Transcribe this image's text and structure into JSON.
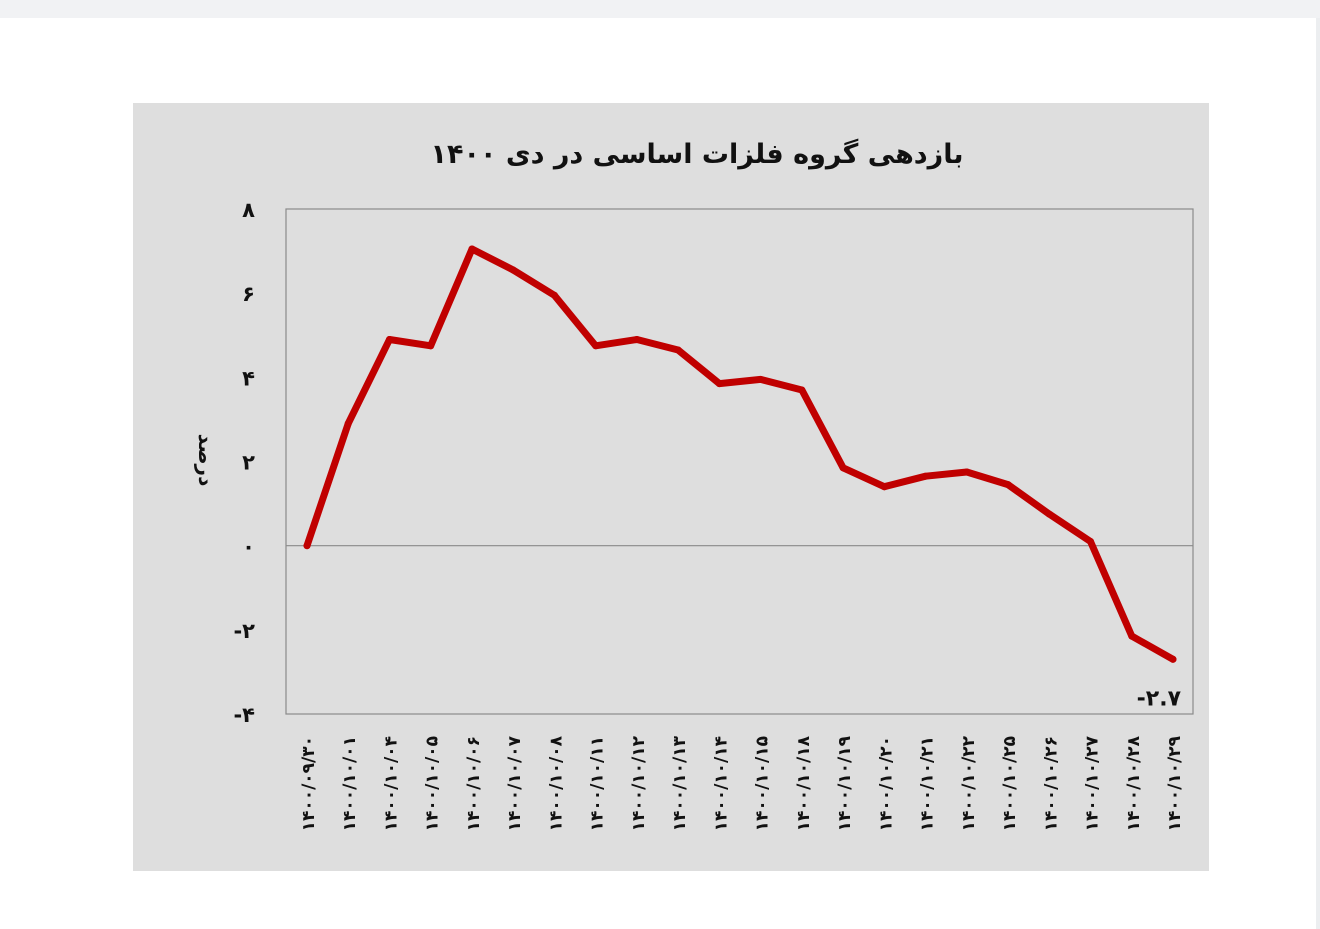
{
  "chart_data": {
    "type": "line",
    "title": "بازدهی گروه فلزات اساسی در دی ۱۴۰۰",
    "ylabel": "درصد",
    "xlabel": "",
    "ylim": [
      -4,
      8
    ],
    "yticks": [
      8,
      6,
      4,
      2,
      0,
      -2,
      -4
    ],
    "ytick_labels": [
      "۸",
      "۶",
      "۴",
      "۲",
      "۰",
      "-۲",
      "-۴"
    ],
    "grid": false,
    "zero_line": true,
    "line_color": "#c00000",
    "categories": [
      "۱۴۰۰/۰۹/۳۰",
      "۱۴۰۰/۱۰/۰۱",
      "۱۴۰۰/۱۰/۰۴",
      "۱۴۰۰/۱۰/۰۵",
      "۱۴۰۰/۱۰/۰۶",
      "۱۴۰۰/۱۰/۰۷",
      "۱۴۰۰/۱۰/۰۸",
      "۱۴۰۰/۱۰/۱۱",
      "۱۴۰۰/۱۰/۱۲",
      "۱۴۰۰/۱۰/۱۳",
      "۱۴۰۰/۱۰/۱۴",
      "۱۴۰۰/۱۰/۱۵",
      "۱۴۰۰/۱۰/۱۸",
      "۱۴۰۰/۱۰/۱۹",
      "۱۴۰۰/۱۰/۲۰",
      "۱۴۰۰/۱۰/۲۱",
      "۱۴۰۰/۱۰/۲۲",
      "۱۴۰۰/۱۰/۲۵",
      "۱۴۰۰/۱۰/۲۶",
      "۱۴۰۰/۱۰/۲۷",
      "۱۴۰۰/۱۰/۲۸",
      "۱۴۰۰/۱۰/۲۹"
    ],
    "values": [
      0.0,
      2.9,
      4.9,
      4.75,
      7.05,
      6.55,
      5.95,
      4.75,
      4.9,
      4.65,
      3.85,
      3.95,
      3.7,
      1.85,
      1.4,
      1.65,
      1.75,
      1.45,
      0.75,
      0.1,
      -2.15,
      -2.7
    ],
    "annotations": [
      {
        "text": "-۲.۷",
        "index": 21
      }
    ]
  }
}
